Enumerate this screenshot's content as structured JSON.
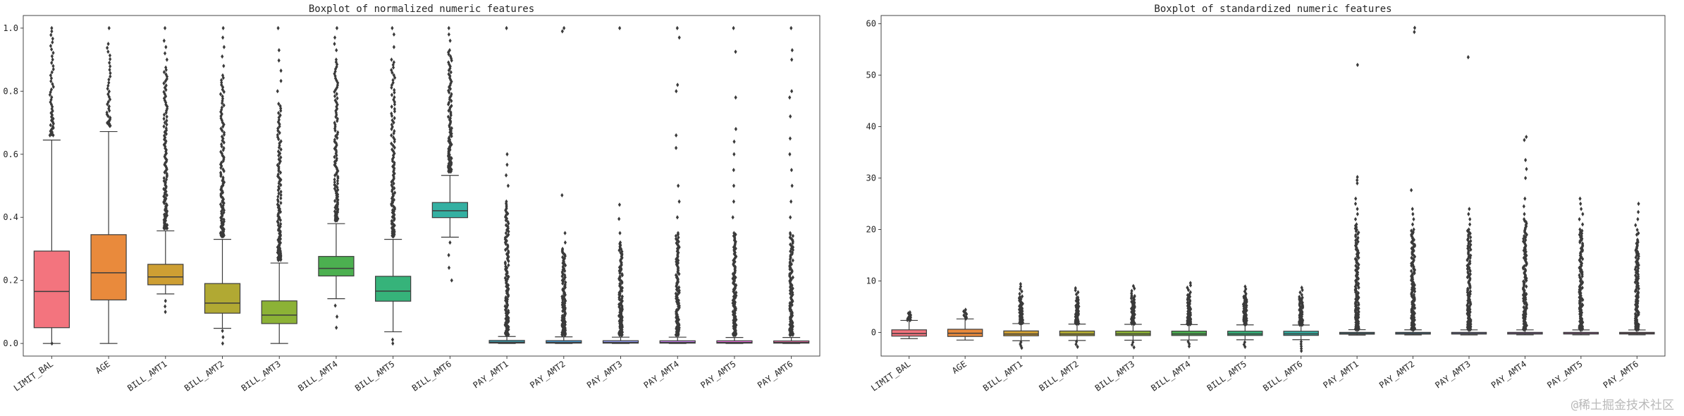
{
  "watermark": "@稀土掘金技术社区",
  "style": {
    "palette": [
      "#f3747e",
      "#e98a3c",
      "#ce9f33",
      "#b1a933",
      "#8cb236",
      "#4cb050",
      "#36b37a",
      "#34b0a2",
      "#39abc0",
      "#45a2e0",
      "#8f99f5",
      "#c97ef2",
      "#f06ee2",
      "#f570ab"
    ],
    "box_edge": "#3d3d3d",
    "median_color": "#3d3d3d",
    "whisker_color": "#3d3d3d",
    "flier_color": "#3a3a3a",
    "axis_color": "#333333",
    "text_color": "#262626",
    "background": "#ffffff",
    "watermark_color": "#b9b9b9"
  },
  "chart_data": [
    {
      "type": "boxplot",
      "title": "Boxplot of normalized numeric features",
      "grid": false,
      "ylim": [
        -0.04,
        1.04
      ],
      "yticks": [
        0.0,
        0.2,
        0.4,
        0.6,
        0.8,
        1.0
      ],
      "ytick_labels": [
        "0.0",
        "0.2",
        "0.4",
        "0.6",
        "0.8",
        "1.0"
      ],
      "categories": [
        "LIMIT_BAL",
        "AGE",
        "BILL_AMT1",
        "BILL_AMT2",
        "BILL_AMT3",
        "BILL_AMT4",
        "BILL_AMT5",
        "BILL_AMT6",
        "PAY_AMT1",
        "PAY_AMT2",
        "PAY_AMT3",
        "PAY_AMT4",
        "PAY_AMT5",
        "PAY_AMT6"
      ],
      "boxes": [
        {
          "label": "LIMIT_BAL",
          "whislo": 0.0,
          "q1": 0.05,
          "med": 0.165,
          "q3": 0.293,
          "whishi": 0.645,
          "fliers": [
            [
              0.66,
              0.99,
              48
            ],
            [
              1.0,
              1.0,
              1
            ],
            [
              0.0,
              0.0,
              1
            ]
          ]
        },
        {
          "label": "AGE",
          "whislo": 0.0,
          "q1": 0.138,
          "med": 0.224,
          "q3": 0.345,
          "whishi": 0.672,
          "fliers": [
            [
              0.69,
              0.95,
              36
            ],
            [
              1.0,
              1.0,
              1
            ]
          ]
        },
        {
          "label": "BILL_AMT1",
          "whislo": 0.157,
          "q1": 0.186,
          "med": 0.211,
          "q3": 0.251,
          "whishi": 0.357,
          "fliers": [
            [
              0.365,
              0.875,
              120
            ],
            [
              0.9,
              0.96,
              4
            ],
            [
              1.0,
              1.0,
              1
            ],
            [
              0.1,
              0.135,
              3
            ]
          ]
        },
        {
          "label": "BILL_AMT2",
          "whislo": 0.048,
          "q1": 0.096,
          "med": 0.128,
          "q3": 0.19,
          "whishi": 0.33,
          "fliers": [
            [
              0.34,
              0.85,
              115
            ],
            [
              0.88,
              0.97,
              4
            ],
            [
              1.0,
              1.0,
              1
            ],
            [
              0.0,
              0.04,
              3
            ]
          ]
        },
        {
          "label": "BILL_AMT3",
          "whislo": 0.0,
          "q1": 0.063,
          "med": 0.09,
          "q3": 0.135,
          "whishi": 0.255,
          "fliers": [
            [
              0.265,
              0.76,
              115
            ],
            [
              0.8,
              0.93,
              5
            ],
            [
              1.0,
              1.0,
              1
            ]
          ]
        },
        {
          "label": "BILL_AMT4",
          "whislo": 0.142,
          "q1": 0.214,
          "med": 0.238,
          "q3": 0.276,
          "whishi": 0.38,
          "fliers": [
            [
              0.39,
              0.9,
              115
            ],
            [
              0.93,
              0.97,
              3
            ],
            [
              1.0,
              1.0,
              1
            ],
            [
              0.05,
              0.12,
              3
            ]
          ]
        },
        {
          "label": "BILL_AMT5",
          "whislo": 0.037,
          "q1": 0.134,
          "med": 0.166,
          "q3": 0.213,
          "whishi": 0.33,
          "fliers": [
            [
              0.34,
              0.9,
              115
            ],
            [
              0.94,
              0.98,
              2
            ],
            [
              1.0,
              1.0,
              1
            ],
            [
              0.0,
              0.012,
              2
            ]
          ]
        },
        {
          "label": "BILL_AMT6",
          "whislo": 0.337,
          "q1": 0.399,
          "med": 0.421,
          "q3": 0.447,
          "whishi": 0.533,
          "fliers": [
            [
              0.545,
              0.93,
              100
            ],
            [
              0.96,
              1.0,
              3
            ],
            [
              0.2,
              0.32,
              4
            ]
          ]
        },
        {
          "label": "PAY_AMT1",
          "whislo": 0.0,
          "q1": 0.0012,
          "med": 0.0038,
          "q3": 0.0096,
          "whishi": 0.022,
          "fliers": [
            [
              0.028,
              0.45,
              130
            ],
            [
              0.5,
              0.6,
              4
            ],
            [
              1.0,
              1.0,
              1
            ]
          ]
        },
        {
          "label": "PAY_AMT2",
          "whislo": 0.0,
          "q1": 0.001,
          "med": 0.0032,
          "q3": 0.009,
          "whishi": 0.021,
          "fliers": [
            [
              0.027,
              0.3,
              120
            ],
            [
              0.32,
              0.35,
              2
            ],
            [
              0.47,
              0.47,
              1
            ],
            [
              0.99,
              1.0,
              2
            ]
          ]
        },
        {
          "label": "PAY_AMT3",
          "whislo": 0.0,
          "q1": 0.001,
          "med": 0.003,
          "q3": 0.0088,
          "whishi": 0.02,
          "fliers": [
            [
              0.027,
              0.32,
              120
            ],
            [
              0.35,
              0.44,
              3
            ],
            [
              1.0,
              1.0,
              1
            ]
          ]
        },
        {
          "label": "PAY_AMT4",
          "whislo": 0.0,
          "q1": 0.001,
          "med": 0.003,
          "q3": 0.0085,
          "whishi": 0.02,
          "fliers": [
            [
              0.027,
              0.35,
              120
            ],
            [
              0.4,
              0.5,
              3
            ],
            [
              0.62,
              0.66,
              2
            ],
            [
              0.8,
              0.82,
              2
            ],
            [
              0.97,
              1.0,
              2
            ]
          ]
        },
        {
          "label": "PAY_AMT5",
          "whislo": 0.0,
          "q1": 0.001,
          "med": 0.003,
          "q3": 0.0085,
          "whishi": 0.019,
          "fliers": [
            [
              0.027,
              0.35,
              120
            ],
            [
              0.4,
              0.55,
              4
            ],
            [
              0.6,
              0.68,
              3
            ],
            [
              0.78,
              0.78,
              1
            ],
            [
              0.92,
              0.93,
              1
            ],
            [
              1.0,
              1.0,
              1
            ]
          ]
        },
        {
          "label": "PAY_AMT6",
          "whislo": 0.0,
          "q1": 0.001,
          "med": 0.003,
          "q3": 0.008,
          "whishi": 0.019,
          "fliers": [
            [
              0.027,
              0.35,
              120
            ],
            [
              0.4,
              0.6,
              5
            ],
            [
              0.65,
              0.72,
              2
            ],
            [
              0.78,
              0.8,
              2
            ],
            [
              0.9,
              0.93,
              2
            ],
            [
              1.0,
              1.0,
              1
            ]
          ]
        }
      ]
    },
    {
      "type": "boxplot",
      "title": "Boxplot of standardized numeric features",
      "grid": false,
      "ylim": [
        -4.6,
        61.6
      ],
      "yticks": [
        0,
        10,
        20,
        30,
        40,
        50,
        60
      ],
      "ytick_labels": [
        "0",
        "10",
        "20",
        "30",
        "40",
        "50",
        "60"
      ],
      "categories": [
        "LIMIT_BAL",
        "AGE",
        "BILL_AMT1",
        "BILL_AMT2",
        "BILL_AMT3",
        "BILL_AMT4",
        "BILL_AMT5",
        "BILL_AMT6",
        "PAY_AMT1",
        "PAY_AMT2",
        "PAY_AMT3",
        "PAY_AMT4",
        "PAY_AMT5",
        "PAY_AMT6"
      ],
      "boxes": [
        {
          "label": "LIMIT_BAL",
          "whislo": -1.21,
          "q1": -0.72,
          "med": -0.21,
          "q3": 0.5,
          "whishi": 2.33,
          "fliers": [
            [
              2.4,
              3.9,
              14
            ]
          ]
        },
        {
          "label": "AGE",
          "whislo": -1.49,
          "q1": -0.79,
          "med": -0.16,
          "q3": 0.61,
          "whishi": 2.62,
          "fliers": [
            [
              2.7,
              4.4,
              10
            ]
          ]
        },
        {
          "label": "BILL_AMT1",
          "whislo": -1.62,
          "q1": -0.66,
          "med": -0.32,
          "q3": 0.29,
          "whishi": 1.71,
          "fliers": [
            [
              1.8,
              7.0,
              65
            ],
            [
              7.5,
              9.4,
              5
            ],
            [
              -3.0,
              -1.9,
              4
            ]
          ]
        },
        {
          "label": "BILL_AMT2",
          "whislo": -1.57,
          "q1": -0.63,
          "med": -0.31,
          "q3": 0.27,
          "whishi": 1.62,
          "fliers": [
            [
              1.7,
              6.8,
              65
            ],
            [
              7.4,
              8.6,
              4
            ],
            [
              -2.8,
              -1.8,
              3
            ]
          ]
        },
        {
          "label": "BILL_AMT3",
          "whislo": -1.52,
          "q1": -0.61,
          "med": -0.3,
          "q3": 0.26,
          "whishi": 1.57,
          "fliers": [
            [
              1.7,
              7.2,
              65
            ],
            [
              7.6,
              9.0,
              4
            ],
            [
              -2.9,
              -1.9,
              3
            ]
          ]
        },
        {
          "label": "BILL_AMT4",
          "whislo": -1.47,
          "q1": -0.6,
          "med": -0.3,
          "q3": 0.25,
          "whishi": 1.52,
          "fliers": [
            [
              1.6,
              7.4,
              65
            ],
            [
              7.8,
              9.6,
              5
            ],
            [
              -2.7,
              -1.8,
              3
            ]
          ]
        },
        {
          "label": "BILL_AMT5",
          "whislo": -1.43,
          "q1": -0.59,
          "med": -0.3,
          "q3": 0.24,
          "whishi": 1.47,
          "fliers": [
            [
              1.6,
              7.1,
              65
            ],
            [
              7.5,
              8.9,
              4
            ],
            [
              -2.8,
              -1.9,
              3
            ]
          ]
        },
        {
          "label": "BILL_AMT6",
          "whislo": -1.41,
          "q1": -0.58,
          "med": -0.29,
          "q3": 0.23,
          "whishi": 1.43,
          "fliers": [
            [
              1.5,
              6.9,
              65
            ],
            [
              7.3,
              8.7,
              4
            ],
            [
              -3.6,
              -1.8,
              5
            ]
          ]
        },
        {
          "label": "PAY_AMT1",
          "whislo": -0.52,
          "q1": -0.34,
          "med": -0.22,
          "q3": 0.01,
          "whishi": 0.53,
          "fliers": [
            [
              0.6,
              21.0,
              130
            ],
            [
              22.0,
              26.0,
              5
            ],
            [
              29.0,
              30.2,
              3
            ],
            [
              52.0,
              52.0,
              1
            ]
          ]
        },
        {
          "label": "PAY_AMT2",
          "whislo": -0.5,
          "q1": -0.33,
          "med": -0.22,
          "q3": 0.01,
          "whishi": 0.51,
          "fliers": [
            [
              0.6,
              20.0,
              130
            ],
            [
              21.0,
              24.0,
              4
            ],
            [
              27.5,
              27.8,
              1
            ],
            [
              58.4,
              59.2,
              2
            ]
          ]
        },
        {
          "label": "PAY_AMT3",
          "whislo": -0.49,
          "q1": -0.32,
          "med": -0.21,
          "q3": 0.01,
          "whishi": 0.5,
          "fliers": [
            [
              0.6,
              20.0,
              130
            ],
            [
              21.0,
              24.0,
              4
            ],
            [
              53.5,
              53.5,
              1
            ]
          ]
        },
        {
          "label": "PAY_AMT4",
          "whislo": -0.48,
          "q1": -0.32,
          "med": -0.21,
          "q3": 0.01,
          "whishi": 0.5,
          "fliers": [
            [
              0.6,
              22.0,
              130
            ],
            [
              23.0,
              26.0,
              3
            ],
            [
              30.0,
              33.5,
              3
            ],
            [
              37.4,
              38.0,
              2
            ]
          ]
        },
        {
          "label": "PAY_AMT5",
          "whislo": -0.48,
          "q1": -0.31,
          "med": -0.21,
          "q3": 0.01,
          "whishi": 0.49,
          "fliers": [
            [
              0.6,
              20.0,
              130
            ],
            [
              21.0,
              26.0,
              6
            ]
          ]
        },
        {
          "label": "PAY_AMT6",
          "whislo": -0.47,
          "q1": -0.31,
          "med": -0.2,
          "q3": 0.01,
          "whishi": 0.48,
          "fliers": [
            [
              0.6,
              18.0,
              125
            ],
            [
              19.0,
              25.0,
              7
            ]
          ]
        }
      ]
    }
  ]
}
